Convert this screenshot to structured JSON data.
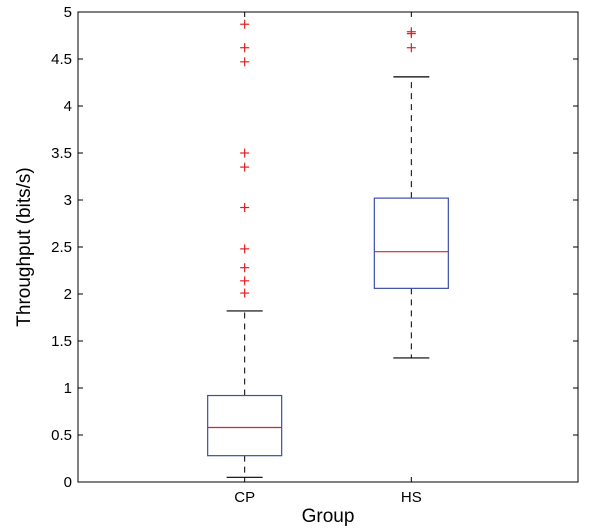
{
  "chart_data": {
    "type": "boxplot",
    "xlabel": "Group",
    "ylabel": "Throughput (bits/s)",
    "ylim": [
      0,
      5
    ],
    "yticks": [
      0,
      0.5,
      1,
      1.5,
      2,
      2.5,
      3,
      3.5,
      4,
      4.5,
      5
    ],
    "ytick_labels": [
      "0",
      "0.5",
      "1",
      "1.5",
      "2",
      "2.5",
      "3",
      "3.5",
      "4",
      "4.5",
      "5"
    ],
    "grid": false,
    "categories": [
      "CP",
      "HS"
    ],
    "boxes": [
      {
        "name": "CP",
        "whisker_low": 0.05,
        "q1": 0.28,
        "median": 0.58,
        "q3": 0.92,
        "whisker_high": 1.82,
        "outliers": [
          2.01,
          2.14,
          2.28,
          2.48,
          2.92,
          3.35,
          3.5,
          4.47,
          4.62,
          4.87
        ]
      },
      {
        "name": "HS",
        "whisker_low": 1.32,
        "q1": 2.06,
        "median": 2.45,
        "q3": 3.02,
        "whisker_high": 4.31,
        "outliers": [
          4.62,
          4.77,
          4.79
        ]
      }
    ],
    "colors": {
      "box": "#3b4fa8",
      "median": "#e02020",
      "outlier": "#e02020",
      "whisker": "#000000",
      "axis": "#000000"
    }
  }
}
